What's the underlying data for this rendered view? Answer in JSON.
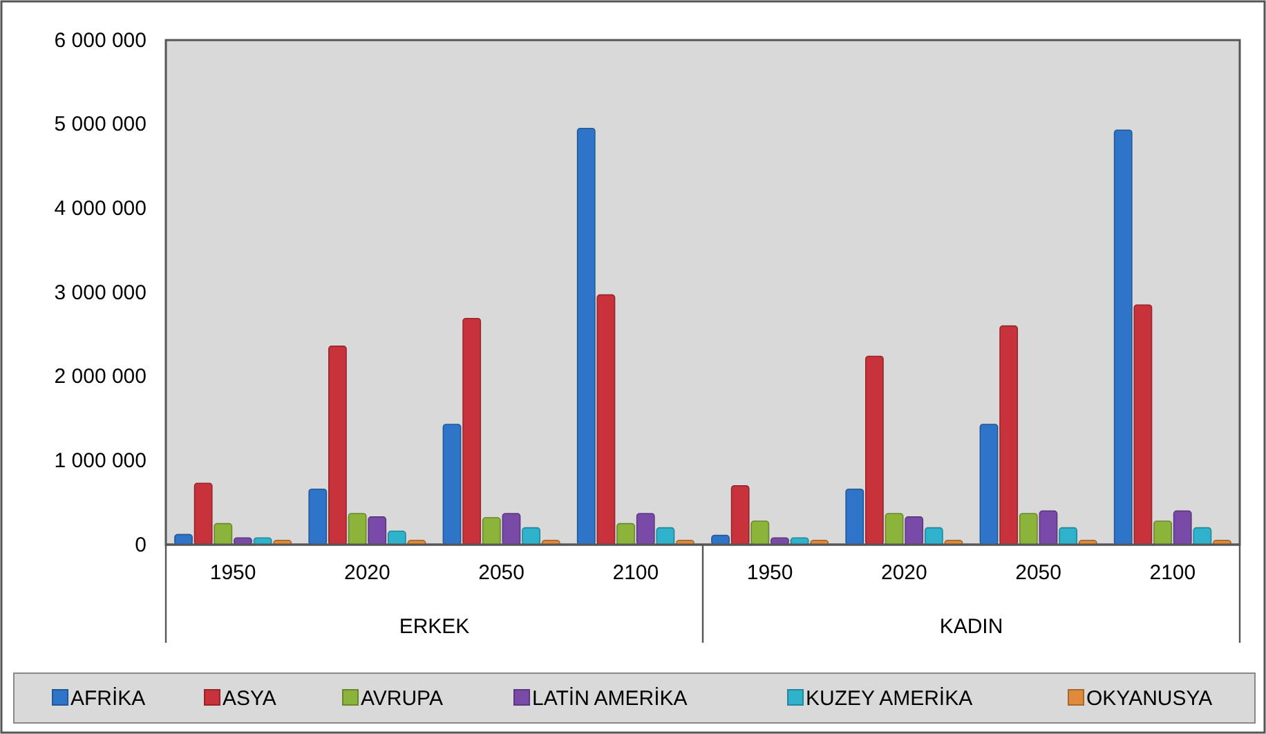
{
  "chart_data": {
    "type": "bar",
    "categories": [
      "1950",
      "2020",
      "2050",
      "2100",
      "1950",
      "2020",
      "2050",
      "2100"
    ],
    "annotations": [
      "ERKEK",
      "KADIN"
    ],
    "series": [
      {
        "name": "AFRİKA",
        "color": "#2e75c9",
        "values": [
          120000,
          660000,
          1430000,
          4950000,
          110000,
          660000,
          1430000,
          4930000
        ]
      },
      {
        "name": "ASYA",
        "color": "#c8323a",
        "values": [
          730000,
          2360000,
          2690000,
          2970000,
          700000,
          2240000,
          2600000,
          2850000
        ]
      },
      {
        "name": "AVRUPA",
        "color": "#8db43a",
        "values": [
          250000,
          370000,
          320000,
          250000,
          280000,
          370000,
          370000,
          280000
        ]
      },
      {
        "name": "LATİN AMERİKA",
        "color": "#7a4aa8",
        "values": [
          80000,
          330000,
          370000,
          370000,
          80000,
          330000,
          400000,
          400000
        ]
      },
      {
        "name": "KUZEY AMERİKA",
        "color": "#2fb3cc",
        "values": [
          80000,
          160000,
          200000,
          200000,
          80000,
          200000,
          200000,
          200000
        ]
      },
      {
        "name": "OKYANUSYA",
        "color": "#e08a3c",
        "values": [
          50000,
          50000,
          50000,
          50000,
          50000,
          50000,
          50000,
          50000
        ]
      }
    ],
    "ylim": [
      0,
      6000000
    ],
    "yticks": [
      {
        "value": 0,
        "label": "0"
      },
      {
        "value": 1000000,
        "label": "1 000 000"
      },
      {
        "value": 2000000,
        "label": "2 000 000"
      },
      {
        "value": 3000000,
        "label": "3 000 000"
      },
      {
        "value": 4000000,
        "label": "4 000 000"
      },
      {
        "value": 5000000,
        "label": "5 000 000"
      },
      {
        "value": 6000000,
        "label": "6 000 000"
      }
    ],
    "grid": false,
    "legend": "bottom"
  }
}
